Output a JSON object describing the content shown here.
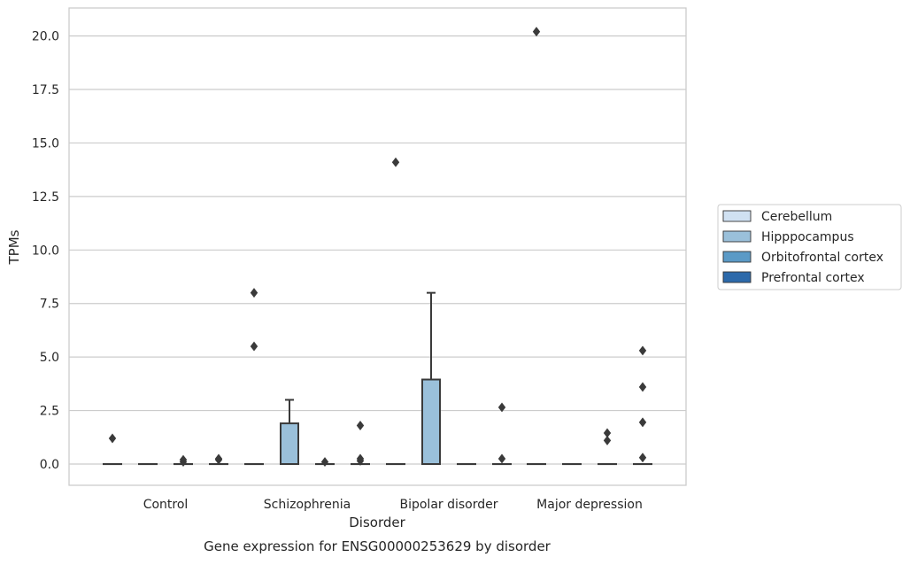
{
  "chart_data": {
    "type": "box",
    "xlabel": "Disorder",
    "ylabel": "TPMs",
    "caption": "Gene expression for ENSG00000253629 by disorder",
    "ylim": [
      -1.0,
      21.3
    ],
    "yticks": [
      0.0,
      2.5,
      5.0,
      7.5,
      10.0,
      12.5,
      15.0,
      17.5,
      20.0
    ],
    "ytick_labels": [
      "0.0",
      "2.5",
      "5.0",
      "7.5",
      "10.0",
      "12.5",
      "15.0",
      "17.5",
      "20.0"
    ],
    "grid": "horizontal",
    "legend_position": "right",
    "categories": [
      "Control",
      "Schizophrenia",
      "Bipolar disorder",
      "Major depression"
    ],
    "series": [
      {
        "name": "Cerebellum",
        "color": "#d0e1f2",
        "boxes": [
          {
            "q1": 0,
            "median": 0,
            "q3": 0,
            "whisker_low": 0,
            "whisker_high": 0,
            "outliers": [
              1.2
            ]
          },
          {
            "q1": 0,
            "median": 0,
            "q3": 0,
            "whisker_low": 0,
            "whisker_high": 0,
            "outliers": [
              5.5,
              8.0
            ]
          },
          {
            "q1": 0,
            "median": 0,
            "q3": 0,
            "whisker_low": 0,
            "whisker_high": 0,
            "outliers": [
              14.1
            ]
          },
          {
            "q1": 0,
            "median": 0,
            "q3": 0,
            "whisker_low": 0,
            "whisker_high": 0,
            "outliers": [
              20.2
            ]
          }
        ]
      },
      {
        "name": "Hipppocampus",
        "color": "#9ac0da",
        "boxes": [
          {
            "q1": 0,
            "median": 0,
            "q3": 0,
            "whisker_low": 0,
            "whisker_high": 0,
            "outliers": []
          },
          {
            "q1": 0,
            "median": 0,
            "q3": 1.9,
            "whisker_low": 0,
            "whisker_high": 3.0,
            "outliers": []
          },
          {
            "q1": 0,
            "median": 0,
            "q3": 3.95,
            "whisker_low": 0,
            "whisker_high": 8.0,
            "outliers": []
          },
          {
            "q1": 0,
            "median": 0,
            "q3": 0,
            "whisker_low": 0,
            "whisker_high": 0,
            "outliers": []
          }
        ]
      },
      {
        "name": "Orbitofrontal cortex",
        "color": "#5b9ac6",
        "boxes": [
          {
            "q1": 0,
            "median": 0,
            "q3": 0,
            "whisker_low": 0,
            "whisker_high": 0,
            "outliers": [
              0.1,
              0.2
            ]
          },
          {
            "q1": 0,
            "median": 0,
            "q3": 0,
            "whisker_low": 0,
            "whisker_high": 0,
            "outliers": [
              0.1
            ]
          },
          {
            "q1": 0,
            "median": 0,
            "q3": 0,
            "whisker_low": 0,
            "whisker_high": 0,
            "outliers": []
          },
          {
            "q1": 0,
            "median": 0,
            "q3": 0,
            "whisker_low": 0,
            "whisker_high": 0,
            "outliers": [
              1.1,
              1.45
            ]
          }
        ]
      },
      {
        "name": "Prefrontal cortex",
        "color": "#2c69aa",
        "boxes": [
          {
            "q1": 0,
            "median": 0,
            "q3": 0,
            "whisker_low": 0,
            "whisker_high": 0,
            "outliers": [
              0.2,
              0.25
            ]
          },
          {
            "q1": 0,
            "median": 0,
            "q3": 0,
            "whisker_low": 0,
            "whisker_high": 0,
            "outliers": [
              0.15,
              0.25,
              1.8
            ]
          },
          {
            "q1": 0,
            "median": 0,
            "q3": 0,
            "whisker_low": 0,
            "whisker_high": 0,
            "outliers": [
              0.25,
              2.65
            ]
          },
          {
            "q1": 0,
            "median": 0,
            "q3": 0,
            "whisker_low": 0,
            "whisker_high": 0,
            "outliers": [
              0.3,
              1.95,
              3.6,
              5.3
            ]
          }
        ]
      }
    ]
  }
}
